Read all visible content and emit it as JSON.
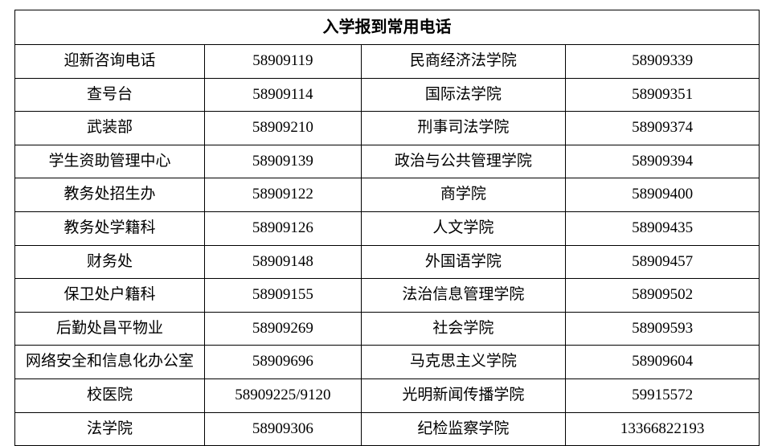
{
  "title": "入学报到常用电话",
  "rows": [
    {
      "left_name": "迎新咨询电话",
      "left_phone": "58909119",
      "right_name": "民商经济法学院",
      "right_phone": "58909339"
    },
    {
      "left_name": "查号台",
      "left_phone": "58909114",
      "right_name": "国际法学院",
      "right_phone": "58909351"
    },
    {
      "left_name": "武装部",
      "left_phone": "58909210",
      "right_name": "刑事司法学院",
      "right_phone": "58909374"
    },
    {
      "left_name": "学生资助管理中心",
      "left_phone": "58909139",
      "right_name": "政治与公共管理学院",
      "right_phone": "58909394"
    },
    {
      "left_name": "教务处招生办",
      "left_phone": "58909122",
      "right_name": "商学院",
      "right_phone": "58909400"
    },
    {
      "left_name": "教务处学籍科",
      "left_phone": "58909126",
      "right_name": "人文学院",
      "right_phone": "58909435"
    },
    {
      "left_name": "财务处",
      "left_phone": "58909148",
      "right_name": "外国语学院",
      "right_phone": "58909457"
    },
    {
      "left_name": "保卫处户籍科",
      "left_phone": "58909155",
      "right_name": "法治信息管理学院",
      "right_phone": "58909502"
    },
    {
      "left_name": "后勤处昌平物业",
      "left_phone": "58909269",
      "right_name": "社会学院",
      "right_phone": "58909593"
    },
    {
      "left_name": "网络安全和信息化办公室",
      "left_phone": "58909696",
      "right_name": "马克思主义学院",
      "right_phone": "58909604"
    },
    {
      "left_name": "校医院",
      "left_phone": "58909225/9120",
      "right_name": "光明新闻传播学院",
      "right_phone": "59915572"
    },
    {
      "left_name": "法学院",
      "left_phone": "58909306",
      "right_name": "纪检监察学院",
      "right_phone": "13366822193"
    }
  ],
  "styling": {
    "font_family": "SimSun",
    "base_font_size": 19,
    "title_font_size": 20,
    "border_color": "#000000",
    "background_color": "#ffffff",
    "text_color": "#000000",
    "column_widths": [
      "25.5%",
      "21%",
      "27.5%",
      "26%"
    ]
  }
}
